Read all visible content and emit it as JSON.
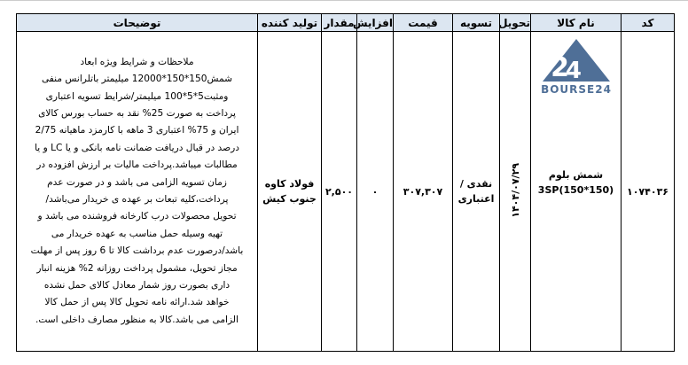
{
  "headers": {
    "code": "کد",
    "product_name": "نام کالا",
    "delivery": "تحویل",
    "settlement": "تسویه",
    "price": "قیمت",
    "increase": "افزایش",
    "quantity": "مقدار",
    "producer": "تولید کننده",
    "description": "توضیحات"
  },
  "row": {
    "code": "۱۰۷۴۰۳۶",
    "logo_text": "BOURSE24",
    "product_name_line1": "شمش بلوم",
    "product_name_line2": "(150*150)3SP",
    "delivery": "۱۴۰۴/۰۷/۲۹",
    "settlement_line1": "نقدی /",
    "settlement_line2": "اعتباری",
    "price": "۳۰۷,۳۰۷",
    "increase": "۰",
    "quantity": "۲,۵۰۰",
    "producer_line1": "فولاد کاوه",
    "producer_line2": "جنوب کیش",
    "description_lines": [
      "ملاحظات و شرایط ویژه  ابعاد",
      "شمش150*150*12000 میلیمتر باتلرانس منفی",
      "ومثبت5*5*100 میلیمتر/شرایط تسویه اعتباری",
      "پرداخت به صورت 25% نقد به حساب بورس کالای",
      "ایران و 75% اعتباری 3 ماهه با کارمزد ماهیانه 2/75",
      "درصد در قبال دریافت ضمانت نامه بانکی و یا LC و یا",
      "مطالبات میباشد.پرداخت  مالیات بر ارزش افزوده در",
      "زمان تسویه الزامی می باشد و در صورت عدم",
      "پرداخت،کلیه تبعات بر عهده ی خریدار می‌باشد/",
      "تحویل محصولات درب کارخانه  فروشنده می باشد و",
      "تهیه وسیله حمل مناسب به عهده خریدار می",
      "باشد/درصورت عدم برداشت کالا تا 6 روز پس از مهلت",
      "مجاز تحویل،  مشمول پرداخت روزانه 2%  هزینه انبار",
      "داری بصورت روز شمار معادل کالای حمل نشده",
      "خواهد شد.ارائه نامه تحویل کالا پس از حمل کالا",
      "الزامی می باشد.کالا به منظور مصارف داخلی است."
    ]
  },
  "colors": {
    "header_bg": "#dce6f1",
    "logo": "#4f6f97"
  }
}
